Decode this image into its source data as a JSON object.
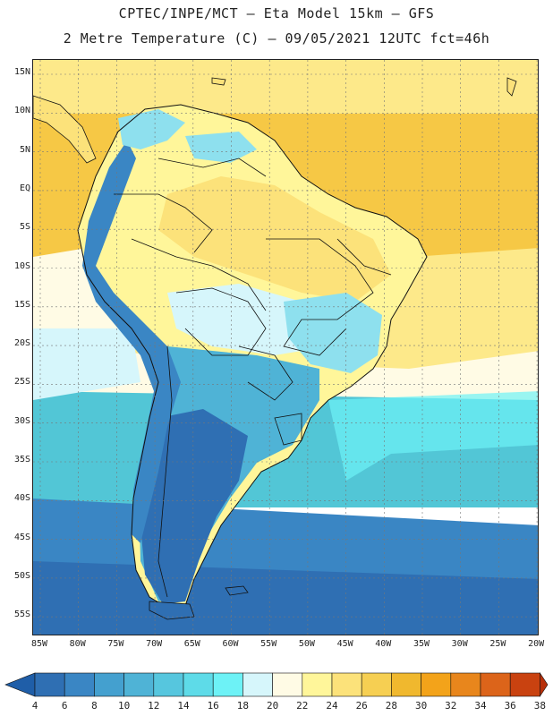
{
  "header": {
    "line1": "CPTEC/INPE/MCT –  Eta Model 15km – GFS",
    "line2": "2 Metre Temperature (C) – 09/05/2021 12UTC fct=46h"
  },
  "map": {
    "lat_ticks": [
      "15N",
      "10N",
      "5N",
      "EQ",
      "5S",
      "10S",
      "15S",
      "20S",
      "25S",
      "30S",
      "35S",
      "40S",
      "45S",
      "50S",
      "55S"
    ],
    "lon_ticks": [
      "85W",
      "80W",
      "75W",
      "70W",
      "65W",
      "60W",
      "55W",
      "50W",
      "45W",
      "40W",
      "35W",
      "30W",
      "25W",
      "20W"
    ],
    "land_colors": {
      "andes_cold": "#2f6fb3",
      "cool": "#4fb3d6",
      "mild": "#8ee0ee",
      "warm": "#fff5a0",
      "hot": "#f7cf4a"
    },
    "ocean_colors": {
      "tropical": "#f6c845",
      "subtropical": "#fde98a",
      "temperate": "#52c6d6",
      "cold": "#3a86c4"
    }
  },
  "colorbar": {
    "labels": [
      "4",
      "6",
      "8",
      "10",
      "12",
      "14",
      "16",
      "18",
      "20",
      "22",
      "24",
      "26",
      "28",
      "30",
      "32",
      "34",
      "36",
      "38"
    ],
    "colors": [
      "#1f5ea8",
      "#2f6fb3",
      "#3a86c4",
      "#44a0cf",
      "#4fb3d6",
      "#56c6de",
      "#5edbe8",
      "#6df2f6",
      "#d6f6fb",
      "#fffbe5",
      "#fff69a",
      "#fce27a",
      "#f6cf52",
      "#f0b82e",
      "#f3a31a",
      "#e8861c",
      "#dc641a",
      "#c94210",
      "#b8300a"
    ]
  }
}
